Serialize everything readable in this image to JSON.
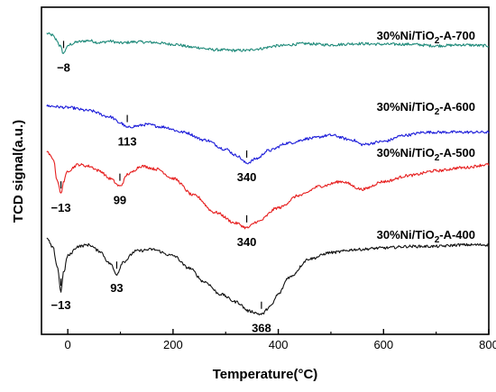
{
  "chart_data": {
    "type": "line",
    "title": "",
    "xlabel": "Temperature(°C)",
    "ylabel": "TCD signal(a.u.)",
    "xlim": [
      -50,
      800
    ],
    "xticks": [
      0,
      200,
      400,
      600,
      800
    ],
    "yticks_shown": false,
    "grid": false,
    "legend": "none (series labelled inline above each curve)",
    "series": [
      {
        "name": "30%Ni/TiO2-A-700",
        "color": "#1f8a7a",
        "peaks": [
          {
            "x": -8,
            "label": "−8"
          }
        ],
        "x": [
          -40,
          -30,
          -22,
          -15,
          -8,
          -2,
          5,
          20,
          40,
          60,
          80,
          100,
          130,
          160,
          200,
          240,
          280,
          320,
          340,
          360,
          400,
          450,
          500,
          550,
          600,
          650,
          700,
          750,
          800
        ],
        "y": [
          8.75,
          8.7,
          8.55,
          8.35,
          8.1,
          8.3,
          8.4,
          8.48,
          8.52,
          8.45,
          8.5,
          8.44,
          8.48,
          8.46,
          8.4,
          8.3,
          8.22,
          8.2,
          8.2,
          8.25,
          8.35,
          8.42,
          8.38,
          8.42,
          8.4,
          8.4,
          8.35,
          8.38,
          8.35
        ]
      },
      {
        "name": "30%Ni/TiO2-A-600",
        "color": "#1c1cd9",
        "peaks": [
          {
            "x": 113,
            "label": "113"
          },
          {
            "x": 340,
            "label": "340"
          }
        ],
        "x": [
          -40,
          0,
          40,
          80,
          100,
          113,
          130,
          150,
          180,
          220,
          260,
          300,
          320,
          340,
          360,
          380,
          420,
          460,
          500,
          540,
          560,
          600,
          640,
          680,
          720,
          760,
          800
        ],
        "y": [
          6.4,
          6.35,
          6.25,
          6.05,
          5.85,
          5.7,
          5.75,
          5.8,
          5.72,
          5.55,
          5.3,
          5.0,
          4.8,
          4.55,
          4.7,
          4.95,
          5.2,
          5.35,
          5.45,
          5.3,
          5.15,
          5.25,
          5.45,
          5.55,
          5.55,
          5.55,
          5.55
        ]
      },
      {
        "name": "30%Ni/TiO2-A-500",
        "color": "#e61e1e",
        "peaks": [
          {
            "x": -13,
            "label": "−13"
          },
          {
            "x": 99,
            "label": "99"
          },
          {
            "x": 340,
            "label": "340"
          }
        ],
        "x": [
          -40,
          -28,
          -20,
          -13,
          -8,
          0,
          20,
          40,
          60,
          80,
          99,
          115,
          140,
          170,
          200,
          240,
          280,
          320,
          340,
          360,
          400,
          440,
          480,
          520,
          560,
          600,
          650,
          700,
          750,
          800
        ],
        "y": [
          4.9,
          4.7,
          4.0,
          3.55,
          3.95,
          4.3,
          4.5,
          4.45,
          4.3,
          4.05,
          3.8,
          4.2,
          4.45,
          4.35,
          4.05,
          3.5,
          2.95,
          2.6,
          2.45,
          2.65,
          3.1,
          3.5,
          3.8,
          3.95,
          3.7,
          3.95,
          4.15,
          4.3,
          4.4,
          4.5
        ]
      },
      {
        "name": "30%Ni/TiO2-A-400",
        "color": "#111111",
        "peaks": [
          {
            "x": -13,
            "label": "−13"
          },
          {
            "x": 93,
            "label": "93"
          },
          {
            "x": 368,
            "label": "368"
          }
        ],
        "x": [
          -40,
          -28,
          -20,
          -13,
          -8,
          0,
          20,
          40,
          60,
          80,
          93,
          105,
          130,
          160,
          200,
          230,
          260,
          290,
          320,
          345,
          368,
          385,
          400,
          420,
          460,
          500,
          550,
          600,
          650,
          700,
          750,
          800
        ],
        "y": [
          2.1,
          1.8,
          1.2,
          0.4,
          1.0,
          1.55,
          1.85,
          1.9,
          1.7,
          1.3,
          0.95,
          1.35,
          1.7,
          1.75,
          1.55,
          1.15,
          0.7,
          0.3,
          0.05,
          -0.25,
          -0.35,
          -0.1,
          0.3,
          0.85,
          1.45,
          1.65,
          1.75,
          1.8,
          1.85,
          1.85,
          1.9,
          1.9
        ]
      }
    ]
  }
}
